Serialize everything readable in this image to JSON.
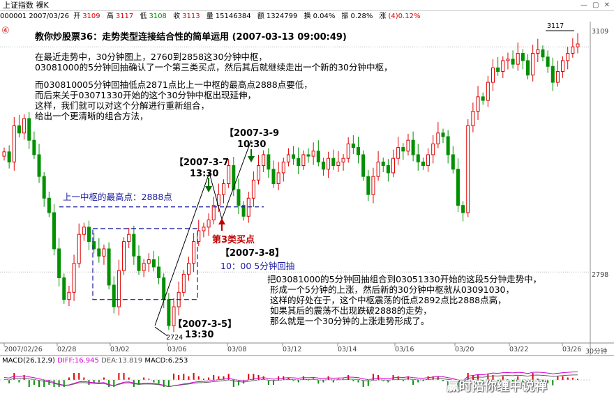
{
  "window": {
    "title": "上证指数 裸K"
  },
  "info": {
    "date": "000001 2007/03/26",
    "open_label": "开",
    "open": "3109",
    "high_label": "高",
    "high": "3117",
    "low_label": "低",
    "low": "3108",
    "close_label": "收",
    "close": "3113",
    "vol_label": "量",
    "vol": "15146384",
    "amt_label": "额",
    "amt": "1324799",
    "turn_label": "换",
    "turn": "0.04%",
    "amp_label": "振",
    "amp": "0.28%",
    "chg_label": "涨",
    "chg": "(4)0.12%"
  },
  "badge": "④",
  "title": "教你炒股票36：走势类型连接结合性的简单运用  (2007-03-13 09:00:49)",
  "para1": [
    "在最近走势中，30分钟图上，2760到2858这30分钟中枢，",
    "03081000的5分钟回抽确认了一个第三类买点，然后其后就继续走出一个新的30分钟中枢，"
  ],
  "para2": [
    "而030810005分钟回抽低点2871点比上一中枢的最高点2888点要低，",
    "而后来关于03071330开始的这个30分钟中枢出现延伸，",
    "这样，我们就可以对这个分解进行重新组合，",
    "给出一个更清晰的组合方法，"
  ],
  "para3": [
    "把03081000的5分钟回抽组合到03051330开始的这段5分钟走势中，",
    "形成一个5分钟的上涨，然后新的30分钟中枢就从03091030，",
    "这样的好处在于，这个中枢震荡的低点2892点比2888点高，",
    "如果其后的震荡不出现跌破2888的走势，",
    "那么就是一个30分钟的上涨走势形成了。"
  ],
  "labels": {
    "d39": "【2007-3-9",
    "d39t": "10:30",
    "d37": "【2007-3-7",
    "d37t": "13:30",
    "zhongshu": "上一中枢的最高点：2888点",
    "buy3": "第3类买点",
    "d38": "【2007-3-8】",
    "d38t": "10：00  5分钟回抽",
    "d35": "【2007-3-5】",
    "d35t": "13:30",
    "low_val": "2724",
    "high_val": "3117"
  },
  "macd": {
    "title": "MACD(26,12,9)",
    "diff_label": "DIFF:",
    "diff": "16.945",
    "dea_label": "DEA:",
    "dea": "13.819",
    "macd_label": "MACD:",
    "macd": "6.253"
  },
  "period": "30分钟",
  "watermark": "赢时陪你缠中说禅",
  "chart_data": {
    "type": "candlestick",
    "title": "上证指数 裸K",
    "xlabel": "",
    "ylabel": "",
    "x_ticks": [
      "2007/02/26",
      "02/28",
      "03/02",
      "03/06",
      "03/08",
      "03/12",
      "03/14",
      "03/16",
      "03/20",
      "03/22",
      "03/26"
    ],
    "y_ticks": [
      3109,
      2798
    ],
    "ylim": [
      2700,
      3140
    ],
    "colors": {
      "up": "#e00000",
      "down": "#009000"
    },
    "key_points": [
      {
        "label": "2724",
        "value": 2724,
        "date": "2007-03-05"
      },
      {
        "label": "3117",
        "value": 3117,
        "date": "2007-03-26"
      }
    ],
    "zhongshu_high": 2888,
    "box_range": [
      2760,
      2858
    ],
    "series": [
      {
        "name": "close",
        "values": [
          2964,
          2950,
          3000,
          2990,
          3010,
          2980,
          2960,
          2930,
          2900,
          2880,
          2830,
          2790,
          2760,
          2770,
          2810,
          2850,
          2860,
          2840,
          2830,
          2820,
          2830,
          2780,
          2750,
          2800,
          2840,
          2850,
          2820,
          2800,
          2810,
          2815,
          2805,
          2790,
          2760,
          2724,
          2750,
          2770,
          2795,
          2810,
          2840,
          2855,
          2860,
          2870,
          2890,
          2905,
          2920,
          2945,
          2912,
          2890,
          2875,
          2900,
          2925,
          2945,
          2960,
          2940,
          2920,
          2935,
          2950,
          2960,
          2955,
          2945,
          2960,
          2958,
          2965,
          2950,
          2940,
          2955,
          2945,
          2950,
          2955,
          2975,
          2970,
          2960,
          2930,
          2905,
          2930,
          2950,
          2945,
          2935,
          2955,
          2970,
          2965,
          2980,
          2960,
          2950,
          2945,
          2960,
          2975,
          2990,
          2985,
          2960,
          2940,
          2890,
          2880,
          3000,
          3020,
          3040,
          3035,
          3060,
          3080,
          3075,
          3090,
          3092,
          3085,
          3100,
          3090,
          3070,
          3100,
          3105,
          3095,
          3082,
          3060,
          3075,
          3090,
          3100,
          3109,
          3113
        ]
      }
    ],
    "macd": {
      "diff": 16.945,
      "dea": 13.819,
      "macd": 6.253
    }
  }
}
